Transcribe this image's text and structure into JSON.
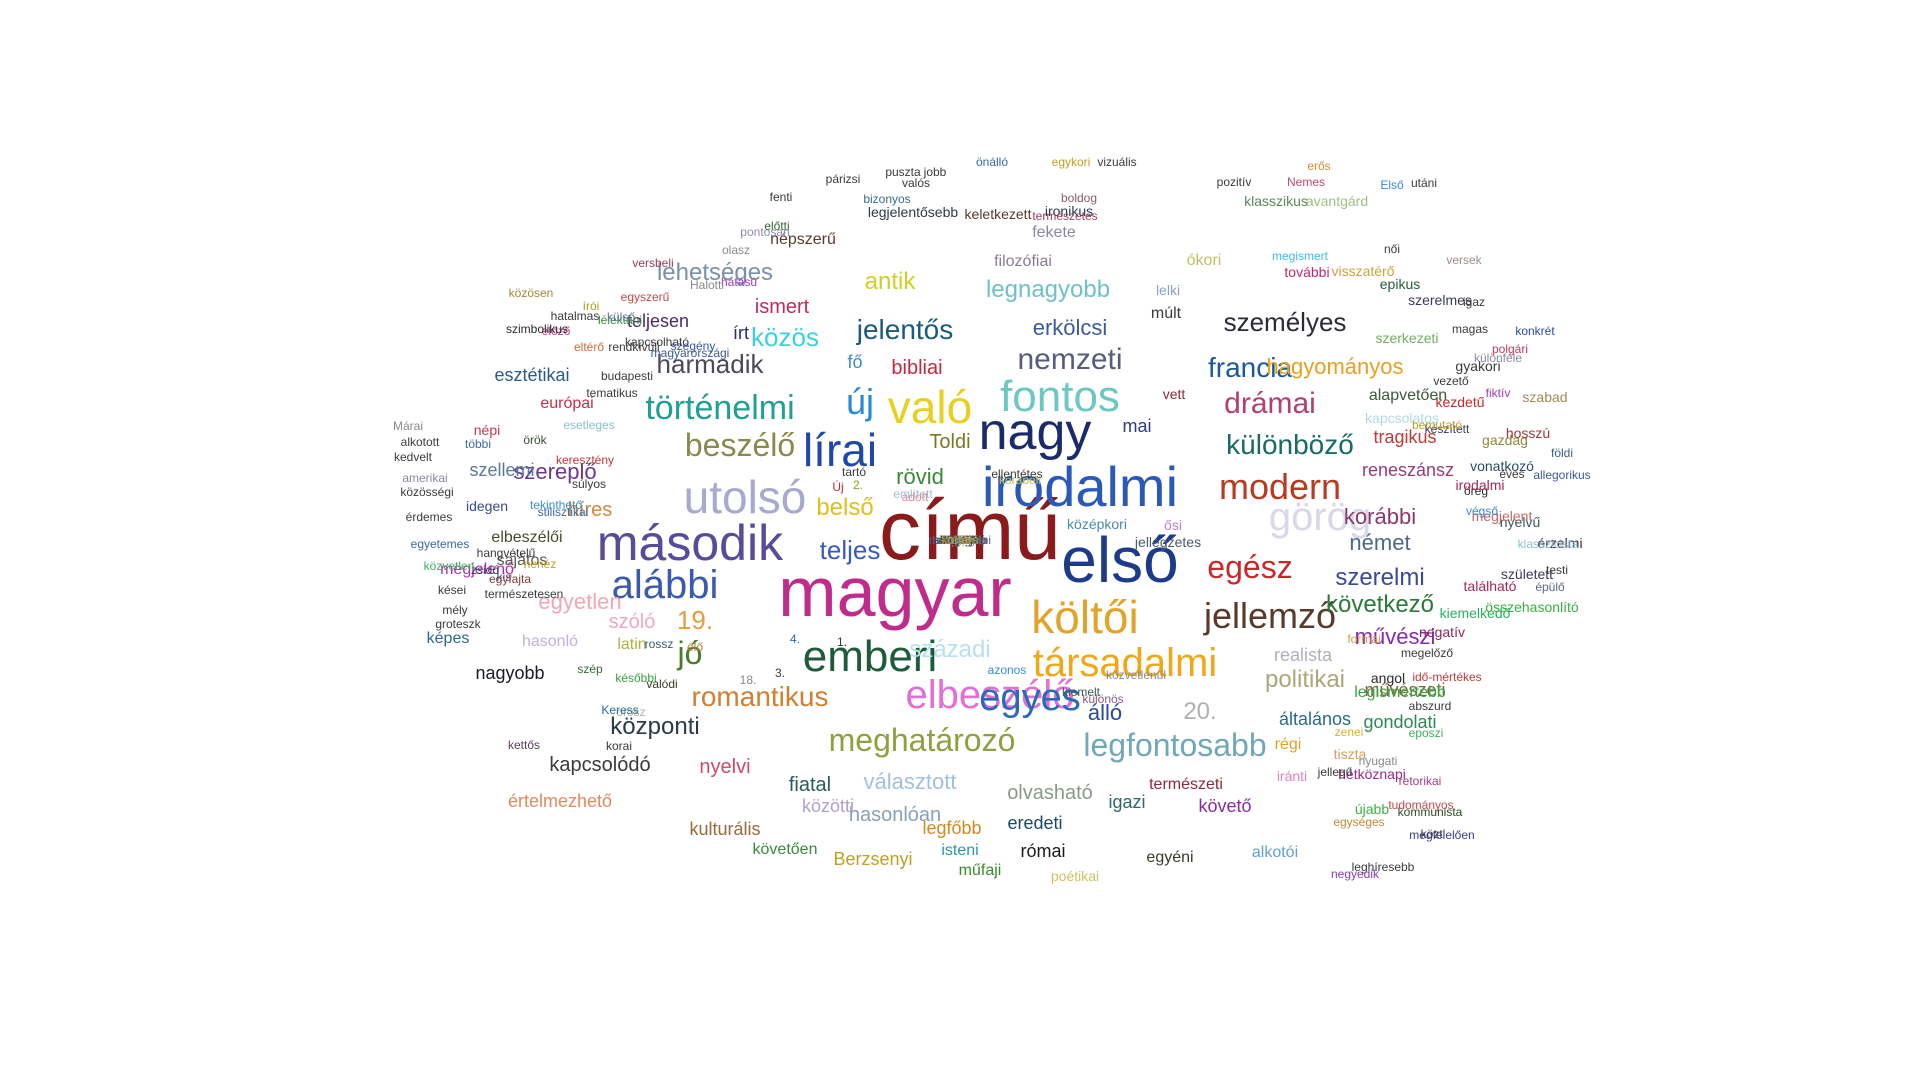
{
  "words": [
    {
      "text": "című",
      "color": "#8b1a1a"
    },
    {
      "text": "magyar",
      "color": "#c02c8c"
    },
    {
      "text": "első",
      "color": "#1e3a8a"
    },
    {
      "text": "irodalmi",
      "color": "#2b59b8"
    },
    {
      "text": "második",
      "color": "#5a4a9a"
    },
    {
      "text": "nagy",
      "color": "#1b2a6b"
    },
    {
      "text": "költői",
      "color": "#e2a32a"
    },
    {
      "text": "utolsó",
      "color": "#a8a8d0"
    },
    {
      "text": "emberi",
      "color": "#1d5b3a"
    },
    {
      "text": "társadalmi",
      "color": "#f0a818"
    },
    {
      "text": "való",
      "color": "#e8d020"
    },
    {
      "text": "lírai",
      "color": "#2048a8"
    },
    {
      "text": "fontos",
      "color": "#6cc8c0"
    },
    {
      "text": "elbeszélő",
      "color": "#e070d8"
    },
    {
      "text": "alábbi",
      "color": "#3a5ab0"
    },
    {
      "text": "egyes",
      "color": "#2c6ab8"
    },
    {
      "text": "történelmi",
      "color": "#20a090"
    },
    {
      "text": "modern",
      "color": "#b83a20"
    },
    {
      "text": "jellemző",
      "color": "#5a3a2a"
    },
    {
      "text": "meghatározó",
      "color": "#90a040"
    },
    {
      "text": "legfontosabb",
      "color": "#70a8b8"
    },
    {
      "text": "görög",
      "color": "#d8d8e8"
    },
    {
      "text": "egész",
      "color": "#c8282a"
    },
    {
      "text": "drámai",
      "color": "#b04070"
    },
    {
      "text": "beszélő",
      "color": "#8a8a50"
    },
    {
      "text": "különböző",
      "color": "#1a6a6a"
    },
    {
      "text": "nemzeti",
      "color": "#5a5a7a"
    },
    {
      "text": "romantikus",
      "color": "#d08030"
    },
    {
      "text": "új",
      "color": "#2a8ad0"
    },
    {
      "text": "jelentős",
      "color": "#1a5a7a"
    },
    {
      "text": "személyes",
      "color": "#2a2a3a"
    },
    {
      "text": "francia",
      "color": "#1a5a9a"
    },
    {
      "text": "következő",
      "color": "#2a7a3a"
    },
    {
      "text": "szerelmi",
      "color": "#3a4a9a"
    },
    {
      "text": "politikai",
      "color": "#a8a878"
    },
    {
      "text": "központi",
      "color": "#2a3a4a"
    },
    {
      "text": "jó",
      "color": "#4a7a2a"
    },
    {
      "text": "harmadik",
      "color": "#4a4a5a"
    },
    {
      "text": "közös",
      "color": "#3ad0e0"
    },
    {
      "text": "teljes",
      "color": "#3a5ab8"
    },
    {
      "text": "századi",
      "color": "#b8e0f0"
    },
    {
      "text": "hagyományos",
      "color": "#e8a020"
    },
    {
      "text": "legnagyobb",
      "color": "#70c0c8"
    },
    {
      "text": "lehetséges",
      "color": "#7a90a8"
    },
    {
      "text": "erkölcsi",
      "color": "#3a5a9a"
    },
    {
      "text": "választott",
      "color": "#a0c0e0"
    },
    {
      "text": "19.",
      "color": "#e0a040"
    },
    {
      "text": "20.",
      "color": "#b0b0b0"
    },
    {
      "text": "egyetlen",
      "color": "#f0a8b8"
    },
    {
      "text": "antik",
      "color": "#d0d020"
    },
    {
      "text": "rövid",
      "color": "#3a8a3a"
    },
    {
      "text": "belső",
      "color": "#e0c020"
    },
    {
      "text": "német",
      "color": "#4a6a8a"
    },
    {
      "text": "korábbi",
      "color": "#8a3a6a"
    },
    {
      "text": "művészi",
      "color": "#8a2ab0"
    },
    {
      "text": "szereplő",
      "color": "#6a3a8a"
    },
    {
      "text": "hasonlóan",
      "color": "#8aa0b8"
    },
    {
      "text": "kapcsolódó",
      "color": "#3a3a3a"
    },
    {
      "text": "nagyobb",
      "color": "#1a1a2a"
    },
    {
      "text": "szellemi",
      "color": "#5a7a9a"
    },
    {
      "text": "álló",
      "color": "#2a4a9a"
    },
    {
      "text": "fiatal",
      "color": "#2a5a5a"
    },
    {
      "text": "olvasható",
      "color": "#8a9a8a"
    },
    {
      "text": "nyelvi",
      "color": "#d04a6a"
    },
    {
      "text": "híres",
      "color": "#d08a3a"
    },
    {
      "text": "esztétikai",
      "color": "#2a5a8a"
    },
    {
      "text": "ismert",
      "color": "#c02a5a"
    },
    {
      "text": "Toldi",
      "color": "#7a7a20"
    },
    {
      "text": "reneszánsz",
      "color": "#9a3a7a"
    },
    {
      "text": "tragikus",
      "color": "#c03a3a"
    },
    {
      "text": "bibliai",
      "color": "#c02a3a"
    },
    {
      "text": "mai",
      "color": "#2a3a8a"
    },
    {
      "text": "szóló",
      "color": "#f0a8c0"
    },
    {
      "text": "realista",
      "color": "#b0b0b8"
    },
    {
      "text": "gondolati",
      "color": "#2a8a5a"
    },
    {
      "text": "általános",
      "color": "#2a6a8a"
    },
    {
      "text": "elbeszélői",
      "color": "#4a4a2a"
    },
    {
      "text": "sajátos",
      "color": "#5a5a5a"
    },
    {
      "text": "megjelenő",
      "color": "#b02ab0"
    },
    {
      "text": "írt",
      "color": "#2a2a6a"
    },
    {
      "text": "fő",
      "color": "#3a8ad0"
    },
    {
      "text": "teljesen",
      "color": "#4a2a6a"
    },
    {
      "text": "európai",
      "color": "#d02a4a"
    },
    {
      "text": "latin",
      "color": "#b0b040"
    },
    {
      "text": "képes",
      "color": "#2a6a8a"
    },
    {
      "text": "hasonló",
      "color": "#c0b0e0"
    },
    {
      "text": "közötti",
      "color": "#b0a0d0"
    },
    {
      "text": "legfőbb",
      "color": "#d08a20"
    },
    {
      "text": "eredeti",
      "color": "#1a4a6a"
    },
    {
      "text": "igazi",
      "color": "#2a6a6a"
    },
    {
      "text": "természeti",
      "color": "#8a2a3a"
    },
    {
      "text": "követő",
      "color": "#8a2aa0"
    },
    {
      "text": "régi",
      "color": "#e0a020"
    },
    {
      "text": "művészeti",
      "color": "#7a6a3a"
    },
    {
      "text": "legismertebb",
      "color": "#3aa040"
    },
    {
      "text": "értelmezhető",
      "color": "#e08a60"
    },
    {
      "text": "kulturális",
      "color": "#9a6a3a"
    },
    {
      "text": "római",
      "color": "#1a1a1a"
    },
    {
      "text": "Berzsenyi",
      "color": "#c0a020"
    },
    {
      "text": "követően",
      "color": "#3a8a3a"
    },
    {
      "text": "műfaji",
      "color": "#3a8a2a"
    },
    {
      "text": "isteni",
      "color": "#2a9aa0"
    },
    {
      "text": "poétikai",
      "color": "#d0c060"
    },
    {
      "text": "egyéni",
      "color": "#3a3a2a"
    },
    {
      "text": "alkotói",
      "color": "#60a0d0"
    },
    {
      "text": "újabb",
      "color": "#3ab040"
    },
    {
      "text": "hétköznapi",
      "color": "#9a2a8a"
    },
    {
      "text": "iránti",
      "color": "#e080c0"
    },
    {
      "text": "tiszta",
      "color": "#d0a060"
    },
    {
      "text": "angol",
      "color": "#2a2a2a"
    },
    {
      "text": "negatív",
      "color": "#8a2a5a"
    },
    {
      "text": "kiemelkedő",
      "color": "#2ab060"
    },
    {
      "text": "összehasonlító",
      "color": "#3ab040"
    },
    {
      "text": "található",
      "color": "#a02a5a"
    },
    {
      "text": "született",
      "color": "#3a3a5a"
    },
    {
      "text": "érzelmi",
      "color": "#3a2a3a"
    },
    {
      "text": "nyelvű",
      "color": "#3a5a5a"
    },
    {
      "text": "öreg",
      "color": "#2a2a2a"
    },
    {
      "text": "irodalmi",
      "color": "#a02a5a"
    },
    {
      "text": "megjelent",
      "color": "#c06a6a"
    },
    {
      "text": "vonatkozó",
      "color": "#2a4a6a"
    },
    {
      "text": "éves",
      "color": "#3a3a3a"
    },
    {
      "text": "gazdag",
      "color": "#8a8a3a"
    },
    {
      "text": "szabad",
      "color": "#a08a5a"
    },
    {
      "text": "hosszú",
      "color": "#9a3a3a"
    },
    {
      "text": "kezdetű",
      "color": "#c02a2a"
    },
    {
      "text": "kapcsolatos",
      "color": "#b0d8e8"
    },
    {
      "text": "alapvetően",
      "color": "#3a5a3a"
    },
    {
      "text": "gyakori",
      "color": "#3a3a3a"
    },
    {
      "text": "konkrét",
      "color": "#2a4aa0"
    },
    {
      "text": "polgári",
      "color": "#c03a60"
    },
    {
      "text": "szerkezeti",
      "color": "#70b060"
    },
    {
      "text": "szerelmes",
      "color": "#3a3a5a"
    },
    {
      "text": "epikus",
      "color": "#2a5a3a"
    },
    {
      "text": "visszatérő",
      "color": "#d0a040"
    },
    {
      "text": "megismert",
      "color": "#3ac0e0"
    },
    {
      "text": "további",
      "color": "#c02a6a"
    },
    {
      "text": "avantgárd",
      "color": "#a0c080"
    },
    {
      "text": "klasszikus",
      "color": "#5a8a5a"
    },
    {
      "text": "ókori",
      "color": "#c0c060"
    },
    {
      "text": "lelki",
      "color": "#8aa0c0"
    },
    {
      "text": "múlt",
      "color": "#3a3a3a"
    },
    {
      "text": "vett",
      "color": "#8a2a3a"
    },
    {
      "text": "ősi",
      "color": "#c080d0"
    },
    {
      "text": "középkori",
      "color": "#4a8ab0"
    },
    {
      "text": "jellegzetes",
      "color": "#4a5a6a"
    },
    {
      "text": "filozófiai",
      "color": "#8a7a9a"
    },
    {
      "text": "fekete",
      "color": "#8a8aa0"
    },
    {
      "text": "keletkezett",
      "color": "#5a3a2a"
    },
    {
      "text": "ironikus",
      "color": "#2a3a5a"
    },
    {
      "text": "boldog",
      "color": "#8a5a6a"
    },
    {
      "text": "természetes",
      "color": "#a04060"
    },
    {
      "text": "legjelentősebb",
      "color": "#2a3a4a"
    },
    {
      "text": "bizonyos",
      "color": "#3a6a8a"
    },
    {
      "text": "népszerű",
      "color": "#5a3a2a"
    },
    {
      "text": "pontosan",
      "color": "#8a8ab0"
    },
    {
      "text": "versbeli",
      "color": "#a03a60"
    },
    {
      "text": "egyszerű",
      "color": "#c04a4a"
    },
    {
      "text": "lélektani",
      "color": "#3a8a3a"
    },
    {
      "text": "írói",
      "color": "#a0a020"
    },
    {
      "text": "előző",
      "color": "#c03a8a"
    },
    {
      "text": "szimbolikus",
      "color": "#2a2a2a"
    },
    {
      "text": "közösen",
      "color": "#a08a3a"
    },
    {
      "text": "külső",
      "color": "#5a7a9a"
    },
    {
      "text": "hatalmas",
      "color": "#3a3a3a"
    },
    {
      "text": "eltérő",
      "color": "#d06a3a"
    },
    {
      "text": "többi",
      "color": "#3a6aa0"
    },
    {
      "text": "örök",
      "color": "#3a4a3a"
    },
    {
      "text": "népi",
      "color": "#c03a5a"
    },
    {
      "text": "idegen",
      "color": "#3a4a8a"
    },
    {
      "text": "zsidó",
      "color": "#3a3a5a"
    },
    {
      "text": "kis",
      "color": "#3a5a9a"
    },
    {
      "text": "szép",
      "color": "#3a6a3a"
    },
    {
      "text": "későbbi",
      "color": "#3aa040"
    },
    {
      "text": "orosz",
      "color": "#b0b0a0"
    },
    {
      "text": "Keress",
      "color": "#2a6a9a"
    },
    {
      "text": "kettős",
      "color": "#5a3a5a"
    },
    {
      "text": "korai",
      "color": "#3a3a3a"
    },
    {
      "text": "valódi",
      "color": "#3a3a2a"
    },
    {
      "text": "rossz",
      "color": "#3a5a7a"
    },
    {
      "text": "élő",
      "color": "#c07a3a"
    },
    {
      "text": "18.",
      "color": "#8a8a8a"
    },
    {
      "text": "3.",
      "color": "#3a3a3a"
    },
    {
      "text": "4.",
      "color": "#2a6aa0"
    },
    {
      "text": "1.",
      "color": "#3a3a3a"
    },
    {
      "text": "2.",
      "color": "#8aa020"
    },
    {
      "text": "Új",
      "color": "#c02a3a"
    },
    {
      "text": "tartó",
      "color": "#3a3a3a"
    },
    {
      "text": "említett",
      "color": "#a0c0d0"
    },
    {
      "text": "adott",
      "color": "#e08aa0"
    },
    {
      "text": "korabeli",
      "color": "#c0c060"
    },
    {
      "text": "ellentétes",
      "color": "#3a3a3a"
    },
    {
      "text": "azonos",
      "color": "#3a8ad0"
    },
    {
      "text": "kiemelt",
      "color": "#3a5a5a"
    },
    {
      "text": "különös",
      "color": "#8a5a8a"
    },
    {
      "text": "közvetlenül",
      "color": "#8a8a8a"
    },
    {
      "text": "formai",
      "color": "#d0a040"
    },
    {
      "text": "zenei",
      "color": "#d0b040"
    },
    {
      "text": "eposzi",
      "color": "#3ab060"
    },
    {
      "text": "abszurd",
      "color": "#3a3a3a"
    },
    {
      "text": "nyugati",
      "color": "#8a8a8a"
    },
    {
      "text": "retorikai",
      "color": "#a03a8a"
    },
    {
      "text": "közti",
      "color": "#3a3a3a"
    },
    {
      "text": "megfelelően",
      "color": "#3a3a8a"
    },
    {
      "text": "leghíresebb",
      "color": "#3a3a3a"
    },
    {
      "text": "negyedik",
      "color": "#8a3ab0"
    },
    {
      "text": "kommunista",
      "color": "#2a4a2a"
    },
    {
      "text": "tudományos",
      "color": "#c04a4a"
    },
    {
      "text": "egységes",
      "color": "#c08a3a"
    },
    {
      "text": "jellegű",
      "color": "#3a3a3a"
    },
    {
      "text": "idő-mértékes",
      "color": "#c03a3a"
    },
    {
      "text": "megelőző",
      "color": "#3a3a3a"
    },
    {
      "text": "épülő",
      "color": "#5a6a8a"
    },
    {
      "text": "testi",
      "color": "#3a3a3a"
    },
    {
      "text": "klasszicista",
      "color": "#8ac0d0"
    },
    {
      "text": "végső",
      "color": "#3a8ad0"
    },
    {
      "text": "földi",
      "color": "#3a5a8a"
    },
    {
      "text": "allegorikus",
      "color": "#3a5a9a"
    },
    {
      "text": "készített",
      "color": "#3a3a5a"
    },
    {
      "text": "bemutató",
      "color": "#c0a020"
    },
    {
      "text": "vezető",
      "color": "#3a3a3a"
    },
    {
      "text": "fiktív",
      "color": "#a03ab0"
    },
    {
      "text": "különféle",
      "color": "#8a8aa0"
    },
    {
      "text": "magas",
      "color": "#3a3a3a"
    },
    {
      "text": "igaz",
      "color": "#3a3a3a"
    },
    {
      "text": "versek",
      "color": "#a08a8a"
    },
    {
      "text": "női",
      "color": "#3a3a3a"
    },
    {
      "text": "Első",
      "color": "#3a8ad0"
    },
    {
      "text": "utáni",
      "color": "#3a3a3a"
    },
    {
      "text": "erős",
      "color": "#d08a3a"
    },
    {
      "text": "Nemes",
      "color": "#c04a6a"
    },
    {
      "text": "pozitív",
      "color": "#3a3a3a"
    },
    {
      "text": "vizuális",
      "color": "#3a3a3a"
    },
    {
      "text": "egykori",
      "color": "#c0a020"
    },
    {
      "text": "önálló",
      "color": "#3a6aa0"
    },
    {
      "text": "jobb",
      "color": "#3a3a3a"
    },
    {
      "text": "valós",
      "color": "#3a3a3a"
    },
    {
      "text": "puszta",
      "color": "#3a3a3a"
    },
    {
      "text": "párizsi",
      "color": "#3a3a3a"
    },
    {
      "text": "fenti",
      "color": "#3a3a3a"
    },
    {
      "text": "előtti",
      "color": "#3a6a3a"
    },
    {
      "text": "olasz",
      "color": "#8a8a8a"
    },
    {
      "text": "hatású",
      "color": "#a03ab0"
    },
    {
      "text": "Halotti",
      "color": "#8a8a8a"
    },
    {
      "text": "szegény",
      "color": "#3a5a9a"
    },
    {
      "text": "magyarországi",
      "color": "#3a5a9a"
    },
    {
      "text": "kapcsolható",
      "color": "#3a3a3a"
    },
    {
      "text": "rendkívüli",
      "color": "#3a3a3a"
    },
    {
      "text": "budapesti",
      "color": "#3a3a3a"
    },
    {
      "text": "tematikus",
      "color": "#3a3a3a"
    },
    {
      "text": "esetleges",
      "color": "#8ac0d0"
    },
    {
      "text": "keresztény",
      "color": "#c03a3a"
    },
    {
      "text": "súlyos",
      "color": "#3a3a3a"
    },
    {
      "text": "stilisztikai",
      "color": "#3a6aa0"
    },
    {
      "text": "tekinthető",
      "color": "#3a8ad0"
    },
    {
      "text": "nehéz",
      "color": "#c0a020"
    },
    {
      "text": "hangvételű",
      "color": "#3a3a3a"
    },
    {
      "text": "természetesen",
      "color": "#3a3a3a"
    },
    {
      "text": "egyfajta",
      "color": "#8a3a3a"
    },
    {
      "text": "groteszk",
      "color": "#3a3a3a"
    },
    {
      "text": "mély",
      "color": "#3a3a3a"
    },
    {
      "text": "kései",
      "color": "#3a3a3a"
    },
    {
      "text": "közvetlen",
      "color": "#3ab060"
    },
    {
      "text": "egyetemes",
      "color": "#3a6aa0"
    },
    {
      "text": "érdemes",
      "color": "#3a3a3a"
    },
    {
      "text": "közösségi",
      "color": "#3a3a3a"
    },
    {
      "text": "amerikai",
      "color": "#8a8aa0"
    },
    {
      "text": "kedvelt",
      "color": "#3a3a3a"
    },
    {
      "text": "alkotott",
      "color": "#3a3a3a"
    },
    {
      "text": "Márai",
      "color": "#8a8a8a"
    },
    {
      "text": "ábrázolt",
      "color": "#3ab060"
    },
    {
      "text": "vidéki",
      "color": "#c0a020"
    },
    {
      "text": "alkotó",
      "color": "#c04a4a"
    },
    {
      "text": "képi",
      "color": "#c0c060"
    },
    {
      "text": "tartott",
      "color": "#8ac0d0"
    },
    {
      "text": "egyes",
      "color": "#8a8a8a"
    },
    {
      "text": "származó",
      "color": "#3a3a3a"
    },
    {
      "text": "széles",
      "color": "#3a3a3a"
    },
    {
      "text": "anyagi",
      "color": "#8a8a8a"
    },
    {
      "text": "filmes",
      "color": "#c03a8a"
    },
    {
      "text": "állandó",
      "color": "#e0a040"
    },
    {
      "text": "nélküli",
      "color": "#3a3a3a"
    },
    {
      "text": "alapvető",
      "color": "#3a3a3a"
    },
    {
      "text": "világi",
      "color": "#3a3a3a"
    },
    {
      "text": "szent",
      "color": "#3a3a3a"
    },
    {
      "text": "érvényű",
      "color": "#3a3a3a"
    },
    {
      "text": "humanista",
      "color": "#c03a3a"
    },
    {
      "text": "kérdés",
      "color": "#3a3a3a"
    },
    {
      "text": "5.",
      "color": "#3a8ad0"
    },
    {
      "text": "7.",
      "color": "#3a3a3a"
    },
    {
      "text": "9.",
      "color": "#c04a4a"
    },
    {
      "text": "fehér",
      "color": "#3a3a3a"
    },
    {
      "text": "utáni",
      "color": "#8a8a8a"
    },
    {
      "text": "hármas",
      "color": "#3a3a3a"
    },
    {
      "text": "kapott",
      "color": "#3a3a3a"
    },
    {
      "text": "külön",
      "color": "#a0c0a0"
    },
    {
      "text": "mély",
      "color": "#8a8a8a"
    },
    {
      "text": "szellemi",
      "color": "#8a8a8a"
    },
    {
      "text": "mindennapi",
      "color": "#3a6aa0"
    },
    {
      "text": "kortárs",
      "color": "#c0a020"
    }
  ]
}
